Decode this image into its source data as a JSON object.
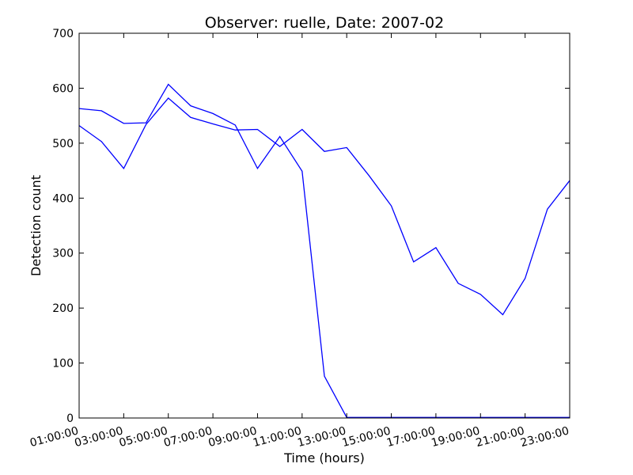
{
  "chart_data": {
    "type": "line",
    "title": "Observer: ruelle, Date: 2007-02",
    "xlabel": "Time (hours)",
    "ylabel": "Detection count",
    "x": [
      "01:00:00",
      "02:00:00",
      "03:00:00",
      "04:00:00",
      "05:00:00",
      "06:00:00",
      "07:00:00",
      "08:00:00",
      "09:00:00",
      "10:00:00",
      "11:00:00",
      "12:00:00",
      "13:00:00",
      "14:00:00",
      "15:00:00",
      "16:00:00",
      "17:00:00",
      "18:00:00",
      "19:00:00",
      "20:00:00",
      "21:00:00",
      "22:00:00",
      "23:00:00"
    ],
    "x_tick_labels": [
      "01:00:00",
      "03:00:00",
      "05:00:00",
      "07:00:00",
      "09:00:00",
      "11:00:00",
      "13:00:00",
      "15:00:00",
      "17:00:00",
      "19:00:00",
      "21:00:00",
      "23:00:00"
    ],
    "ylim": [
      0,
      700
    ],
    "y_ticks": [
      0,
      100,
      200,
      300,
      400,
      500,
      600,
      700
    ],
    "grid": false,
    "series": [
      {
        "color": "#0000ff",
        "values": [
          563,
          559,
          536,
          537,
          607,
          568,
          554,
          533,
          454,
          512,
          449,
          76,
          1,
          1,
          1,
          1,
          1,
          1,
          1,
          1,
          1,
          1,
          1
        ]
      },
      {
        "color": "#0000ff",
        "values": [
          532,
          503,
          454,
          534,
          582,
          547,
          535,
          524,
          525,
          494,
          525,
          485,
          492,
          441,
          386,
          284,
          310,
          245,
          225,
          188,
          254,
          380,
          432
        ]
      }
    ]
  }
}
